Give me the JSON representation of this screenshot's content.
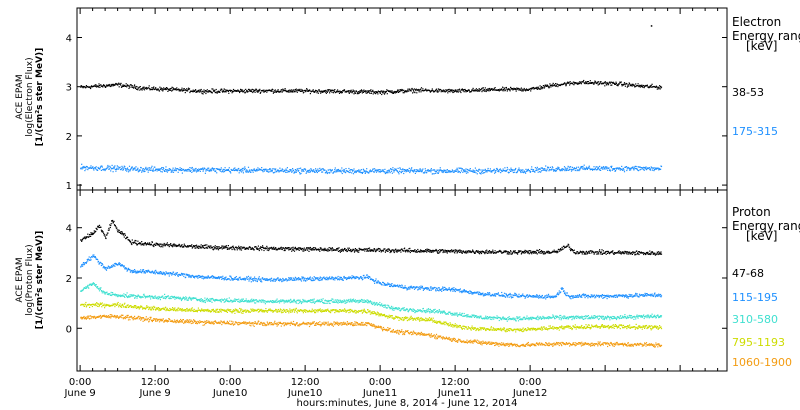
{
  "footer": {
    "xlabel": "hours:minutes,  June  8, 2014 - June 12, 2014"
  },
  "time_ticks": [
    {
      "time": "0:00",
      "date": "June 9"
    },
    {
      "time": "12:00",
      "date": "June 9"
    },
    {
      "time": "0:00",
      "date": "June10"
    },
    {
      "time": "12:00",
      "date": "June10"
    },
    {
      "time": "0:00",
      "date": "June11"
    },
    {
      "time": "12:00",
      "date": "June11"
    },
    {
      "time": "0:00",
      "date": "June12"
    }
  ],
  "chart_data": [
    {
      "type": "scatter",
      "ylabel_lines": [
        "ACE EPAM",
        "log(Electron Flux)",
        "[1/(cm²s ster MeV)]"
      ],
      "legend_title_lines": [
        "Electron",
        "Energy range",
        "[keV]"
      ],
      "ylim": [
        0.9,
        4.6
      ],
      "yticks": [
        1,
        2,
        3,
        4
      ],
      "x_hours_range": [
        -0.5,
        103.5
      ],
      "series": [
        {
          "name": "38-53",
          "color": "#000000",
          "points": [
            [
              0,
              3.0
            ],
            [
              6,
              3.05
            ],
            [
              10,
              2.98
            ],
            [
              20,
              2.92
            ],
            [
              30,
              2.93
            ],
            [
              40,
              2.92
            ],
            [
              48,
              2.9
            ],
            [
              54,
              2.94
            ],
            [
              60,
              2.92
            ],
            [
              66,
              2.95
            ],
            [
              72,
              2.96
            ],
            [
              76,
              3.05
            ],
            [
              80,
              3.1
            ],
            [
              86,
              3.07
            ],
            [
              90,
              3.02
            ],
            [
              93,
              3.0
            ]
          ],
          "spikes": [
            [
              91.3,
              4.25
            ]
          ]
        },
        {
          "name": "175-315",
          "color": "#1e90ff",
          "points": [
            [
              0,
              1.37
            ],
            [
              6,
              1.35
            ],
            [
              10,
              1.33
            ],
            [
              20,
              1.32
            ],
            [
              30,
              1.31
            ],
            [
              40,
              1.3
            ],
            [
              48,
              1.3
            ],
            [
              54,
              1.3
            ],
            [
              60,
              1.3
            ],
            [
              66,
              1.3
            ],
            [
              72,
              1.32
            ],
            [
              78,
              1.35
            ],
            [
              84,
              1.35
            ],
            [
              90,
              1.35
            ],
            [
              93,
              1.34
            ]
          ]
        }
      ]
    },
    {
      "type": "scatter",
      "ylabel_lines": [
        "ACE EPAM",
        "log(Proton Flux)",
        "[1/(cm²s ster MeV)]"
      ],
      "legend_title_lines": [
        "Proton",
        "Energy range",
        "[keV]"
      ],
      "ylim": [
        -1.7,
        5.5
      ],
      "yticks": [
        0,
        2,
        4
      ],
      "x_hours_range": [
        -0.5,
        103.5
      ],
      "series": [
        {
          "name": "47-68",
          "color": "#000000",
          "points": [
            [
              0,
              3.5
            ],
            [
              2,
              3.8
            ],
            [
              3,
              4.1
            ],
            [
              4,
              3.6
            ],
            [
              5,
              4.3
            ],
            [
              6,
              3.9
            ],
            [
              7,
              3.7
            ],
            [
              8,
              3.45
            ],
            [
              12,
              3.35
            ],
            [
              20,
              3.25
            ],
            [
              30,
              3.2
            ],
            [
              40,
              3.15
            ],
            [
              50,
              3.12
            ],
            [
              60,
              3.08
            ],
            [
              70,
              3.05
            ],
            [
              76,
              3.05
            ],
            [
              78,
              3.3
            ],
            [
              79,
              3.05
            ],
            [
              80,
              3.05
            ],
            [
              86,
              3.03
            ],
            [
              93,
              3.0
            ]
          ]
        },
        {
          "name": "115-195",
          "color": "#1e90ff",
          "points": [
            [
              0,
              2.5
            ],
            [
              2,
              2.9
            ],
            [
              4,
              2.4
            ],
            [
              6,
              2.6
            ],
            [
              8,
              2.3
            ],
            [
              12,
              2.25
            ],
            [
              20,
              2.05
            ],
            [
              30,
              1.95
            ],
            [
              40,
              2.0
            ],
            [
              46,
              2.05
            ],
            [
              48,
              1.8
            ],
            [
              52,
              1.65
            ],
            [
              56,
              1.6
            ],
            [
              60,
              1.55
            ],
            [
              64,
              1.4
            ],
            [
              70,
              1.3
            ],
            [
              76,
              1.28
            ],
            [
              77,
              1.6
            ],
            [
              78,
              1.3
            ],
            [
              84,
              1.3
            ],
            [
              93,
              1.35
            ]
          ]
        },
        {
          "name": "310-580",
          "color": "#40e0d0",
          "points": [
            [
              0,
              1.5
            ],
            [
              2,
              1.8
            ],
            [
              4,
              1.4
            ],
            [
              8,
              1.3
            ],
            [
              14,
              1.25
            ],
            [
              20,
              1.15
            ],
            [
              30,
              1.1
            ],
            [
              40,
              1.1
            ],
            [
              46,
              1.1
            ],
            [
              50,
              0.8
            ],
            [
              56,
              0.72
            ],
            [
              60,
              0.6
            ],
            [
              64,
              0.45
            ],
            [
              70,
              0.4
            ],
            [
              76,
              0.45
            ],
            [
              84,
              0.45
            ],
            [
              93,
              0.5
            ]
          ]
        },
        {
          "name": "795-1193",
          "color": "#cddc00",
          "points": [
            [
              0,
              0.95
            ],
            [
              6,
              0.95
            ],
            [
              12,
              0.8
            ],
            [
              20,
              0.72
            ],
            [
              30,
              0.72
            ],
            [
              40,
              0.72
            ],
            [
              46,
              0.7
            ],
            [
              50,
              0.45
            ],
            [
              56,
              0.35
            ],
            [
              60,
              0.1
            ],
            [
              64,
              0.0
            ],
            [
              70,
              -0.05
            ],
            [
              76,
              0.05
            ],
            [
              84,
              0.1
            ],
            [
              93,
              0.05
            ]
          ]
        },
        {
          "name": "1060-1900",
          "color": "#f39c12",
          "points": [
            [
              0,
              0.45
            ],
            [
              6,
              0.5
            ],
            [
              12,
              0.35
            ],
            [
              20,
              0.25
            ],
            [
              30,
              0.2
            ],
            [
              40,
              0.2
            ],
            [
              46,
              0.2
            ],
            [
              50,
              -0.1
            ],
            [
              56,
              -0.25
            ],
            [
              60,
              -0.45
            ],
            [
              64,
              -0.55
            ],
            [
              70,
              -0.65
            ],
            [
              76,
              -0.6
            ],
            [
              84,
              -0.6
            ],
            [
              93,
              -0.65
            ]
          ]
        }
      ]
    }
  ]
}
